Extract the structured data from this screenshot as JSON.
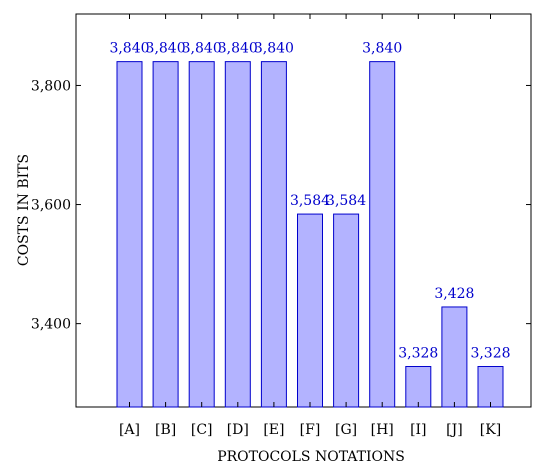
{
  "chart_data": {
    "type": "bar",
    "title": "",
    "xlabel": "PROTOCOLS NOTATIONS",
    "ylabel": "COSTS IN BITS",
    "categories": [
      "[A]",
      "[B]",
      "[C]",
      "[D]",
      "[E]",
      "[F]",
      "[G]",
      "[H]",
      "[I]",
      "[J]",
      "[K]"
    ],
    "values": [
      3840,
      3840,
      3840,
      3840,
      3840,
      3584,
      3584,
      3840,
      3328,
      3428,
      3328
    ],
    "value_labels": [
      "3,840",
      "3,840",
      "3,840",
      "3,840",
      "3,840",
      "3,584",
      "3,584",
      "3,840",
      "3,328",
      "3,428",
      "3,328"
    ],
    "ylim": [
      3260,
      3920
    ],
    "yticks": [
      3400,
      3600,
      3800
    ],
    "ytick_labels": [
      "3,400",
      "3,600",
      "3,800"
    ],
    "grid": false,
    "legend": "none",
    "colors": {
      "bar_fill": "#b3b3ff",
      "bar_stroke": "#0000cc",
      "data_label": "#0000cc",
      "axis": "#000000"
    }
  }
}
